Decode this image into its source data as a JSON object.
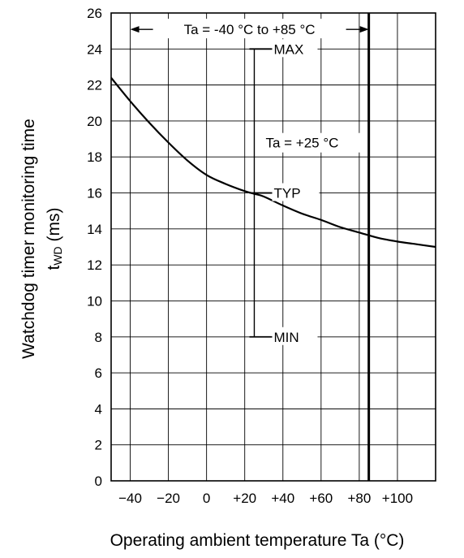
{
  "chart_data": {
    "type": "line",
    "title": "",
    "xlabel": "Operating ambient temperature Ta (°C)",
    "ylabel_line1": "Watchdog timer monitoring time",
    "ylabel_line2_main": "t",
    "ylabel_line2_sub": "WD",
    "ylabel_line2_unit": " (ms)",
    "xlim": [
      -50,
      120
    ],
    "ylim": [
      0,
      26
    ],
    "x_ticks": [
      -40,
      -20,
      0,
      20,
      40,
      60,
      80,
      100
    ],
    "x_tick_labels": [
      "−40",
      "−20",
      "0",
      "+20",
      "+40",
      "+60",
      "+80",
      "+100"
    ],
    "y_ticks": [
      0,
      2,
      4,
      6,
      8,
      10,
      12,
      14,
      16,
      18,
      20,
      22,
      24,
      26
    ],
    "y_tick_labels": [
      "0",
      "2",
      "4",
      "6",
      "8",
      "10",
      "12",
      "14",
      "16",
      "18",
      "20",
      "22",
      "24",
      "26"
    ],
    "grid": true,
    "series": [
      {
        "x": [
          -50,
          -40,
          -30,
          -20,
          -10,
          0,
          10,
          20,
          25,
          30,
          40,
          50,
          60,
          70,
          80,
          90,
          100,
          110,
          120
        ],
        "y": [
          22.4,
          21.1,
          19.9,
          18.8,
          17.8,
          17.0,
          16.5,
          16.1,
          15.95,
          15.8,
          15.3,
          14.85,
          14.5,
          14.1,
          13.8,
          13.5,
          13.3,
          13.15,
          13.0
        ]
      }
    ],
    "range_bar": {
      "x": 25,
      "max": 24,
      "typ": 16,
      "min": 8,
      "max_label": "MAX",
      "typ_label": "TYP",
      "min_label": "MIN",
      "condition_label": "Ta = +25 °C"
    },
    "limit_line": {
      "x": 85
    },
    "range_annotation": {
      "from": -40,
      "to": 85,
      "y": 25,
      "label": "Ta = -40 °C to +85 °C"
    }
  }
}
